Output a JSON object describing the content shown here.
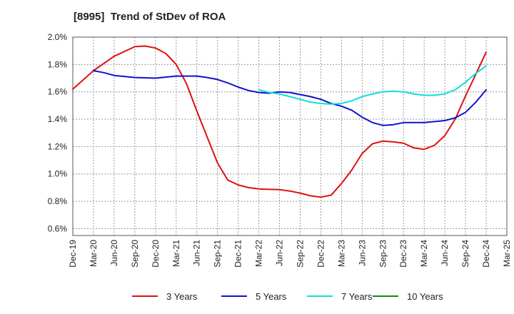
{
  "title": "[8995]  Trend of StDev of ROA",
  "chart_data": {
    "type": "line",
    "title": "[8995]  Trend of StDev of ROA",
    "x_tick_labels": [
      "Dec-19",
      "Mar-20",
      "Jun-20",
      "Sep-20",
      "Dec-20",
      "Mar-21",
      "Jun-21",
      "Sep-21",
      "Dec-21",
      "Mar-22",
      "Jun-22",
      "Sep-22",
      "Dec-22",
      "Mar-23",
      "Jun-23",
      "Sep-23",
      "Dec-23",
      "Mar-24",
      "Jun-24",
      "Sep-24",
      "Dec-24",
      "Mar-25"
    ],
    "y_tick_labels": [
      "2.0%",
      "1.8%",
      "1.6%",
      "1.4%",
      "1.2%",
      "1.0%",
      "0.8%",
      "0.6%"
    ],
    "ylim": [
      0.55,
      2.0
    ],
    "grid": true,
    "legend_position": "bottom",
    "series": [
      {
        "name": "3 Years",
        "color": "#dd1111",
        "points": [
          [
            0,
            1.62
          ],
          [
            1,
            1.755
          ],
          [
            2,
            1.86
          ],
          [
            3,
            1.93
          ],
          [
            3.5,
            1.935
          ],
          [
            4,
            1.92
          ],
          [
            4.5,
            1.88
          ],
          [
            5,
            1.8
          ],
          [
            5.5,
            1.66
          ],
          [
            6,
            1.46
          ],
          [
            6.5,
            1.27
          ],
          [
            7,
            1.08
          ],
          [
            7.5,
            0.955
          ],
          [
            8,
            0.92
          ],
          [
            8.5,
            0.9
          ],
          [
            9,
            0.89
          ],
          [
            10,
            0.885
          ],
          [
            10.5,
            0.875
          ],
          [
            11,
            0.86
          ],
          [
            11.5,
            0.84
          ],
          [
            12,
            0.83
          ],
          [
            12.5,
            0.845
          ],
          [
            13,
            0.93
          ],
          [
            13.5,
            1.03
          ],
          [
            14,
            1.15
          ],
          [
            14.5,
            1.22
          ],
          [
            15,
            1.24
          ],
          [
            15.5,
            1.235
          ],
          [
            16,
            1.225
          ],
          [
            16.5,
            1.19
          ],
          [
            17,
            1.18
          ],
          [
            17.5,
            1.21
          ],
          [
            18,
            1.28
          ],
          [
            18.5,
            1.4
          ],
          [
            19,
            1.57
          ],
          [
            19.5,
            1.73
          ],
          [
            20,
            1.89
          ]
        ]
      },
      {
        "name": "5 Years",
        "color": "#1111cc",
        "points": [
          [
            1,
            1.755
          ],
          [
            1.5,
            1.74
          ],
          [
            2,
            1.72
          ],
          [
            3,
            1.705
          ],
          [
            4,
            1.7
          ],
          [
            5,
            1.715
          ],
          [
            6,
            1.715
          ],
          [
            6.5,
            1.705
          ],
          [
            7,
            1.69
          ],
          [
            7.5,
            1.665
          ],
          [
            8,
            1.635
          ],
          [
            8.5,
            1.61
          ],
          [
            9,
            1.595
          ],
          [
            9.5,
            1.59
          ],
          [
            10,
            1.6
          ],
          [
            10.5,
            1.595
          ],
          [
            11,
            1.58
          ],
          [
            11.5,
            1.565
          ],
          [
            12,
            1.545
          ],
          [
            12.5,
            1.515
          ],
          [
            13,
            1.495
          ],
          [
            13.5,
            1.465
          ],
          [
            14,
            1.415
          ],
          [
            14.5,
            1.375
          ],
          [
            15,
            1.355
          ],
          [
            15.5,
            1.36
          ],
          [
            16,
            1.375
          ],
          [
            17,
            1.375
          ],
          [
            18,
            1.39
          ],
          [
            18.5,
            1.41
          ],
          [
            19,
            1.45
          ],
          [
            19.5,
            1.525
          ],
          [
            20,
            1.615
          ]
        ]
      },
      {
        "name": "7 Years",
        "color": "#11dddd",
        "points": [
          [
            9,
            1.615
          ],
          [
            9.5,
            1.595
          ],
          [
            10,
            1.585
          ],
          [
            10.5,
            1.565
          ],
          [
            11,
            1.545
          ],
          [
            11.5,
            1.525
          ],
          [
            12,
            1.515
          ],
          [
            12.5,
            1.51
          ],
          [
            13,
            1.515
          ],
          [
            13.5,
            1.535
          ],
          [
            14,
            1.565
          ],
          [
            14.5,
            1.585
          ],
          [
            15,
            1.6
          ],
          [
            15.5,
            1.605
          ],
          [
            16,
            1.6
          ],
          [
            16.5,
            1.585
          ],
          [
            17,
            1.575
          ],
          [
            17.5,
            1.575
          ],
          [
            18,
            1.585
          ],
          [
            18.5,
            1.615
          ],
          [
            19,
            1.67
          ],
          [
            19.5,
            1.735
          ],
          [
            20,
            1.79
          ]
        ]
      },
      {
        "name": "10 Years",
        "color": "#118811",
        "points": []
      }
    ]
  }
}
